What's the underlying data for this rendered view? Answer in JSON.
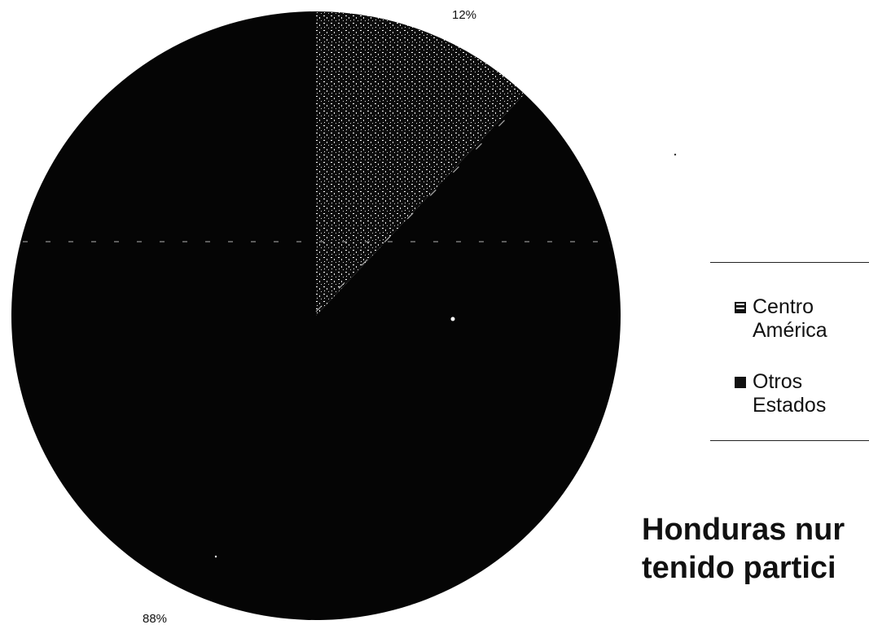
{
  "chart_data": {
    "type": "pie",
    "title": "",
    "slices": [
      {
        "label": "Centro América",
        "value": 12,
        "value_label": "12%",
        "color": "#1a1a1a",
        "pattern": "speckled"
      },
      {
        "label": "Otros Estados",
        "value": 88,
        "value_label": "88%",
        "color": "#050505"
      }
    ],
    "start_angle_deg": 0,
    "direction": "clockwise",
    "legend": {
      "placement": "right",
      "entries": [
        {
          "label_line1": "Centro",
          "label_line2": "América",
          "swatch": "patterned"
        },
        {
          "label_line1": "Otros",
          "label_line2": "Estados",
          "swatch": "solid-black"
        }
      ]
    }
  },
  "caption": {
    "line1": "Honduras nur",
    "line2": "tenido partici"
  }
}
